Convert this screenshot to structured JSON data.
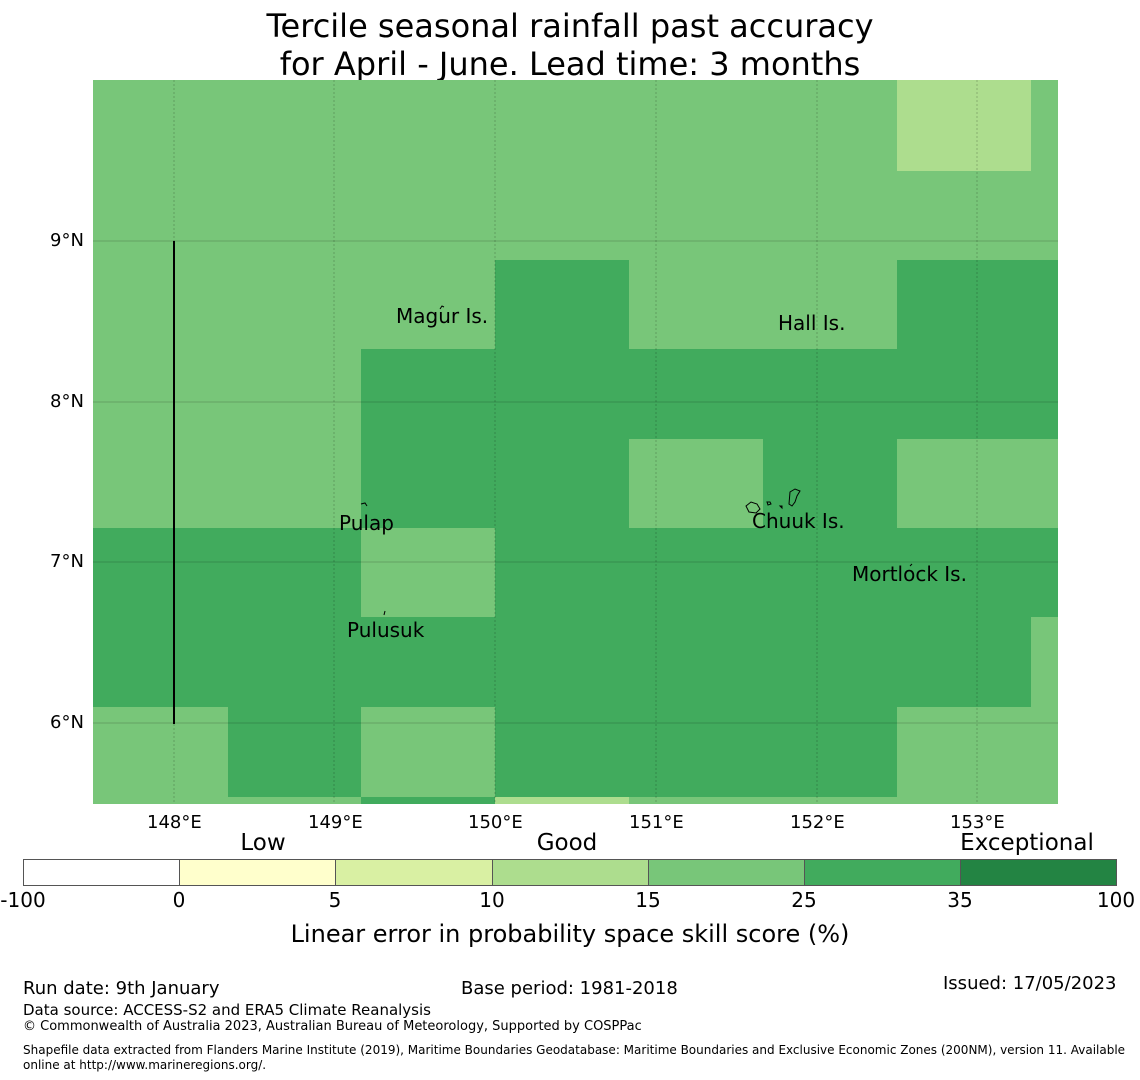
{
  "title": {
    "line1": "Tercile seasonal rainfall past accuracy",
    "line2": "for April - June. Lead time: 3 months"
  },
  "map": {
    "lon_labels": [
      "148°E",
      "149°E",
      "150°E",
      "151°E",
      "152°E",
      "153°E"
    ],
    "lat_labels": [
      "9°N",
      "8°N",
      "7°N",
      "6°N"
    ],
    "places": {
      "magur": "Magur Is.",
      "hall": "Hall Is.",
      "pulap": "Pulap",
      "chuuk": "Chuuk Is.",
      "mortlock": "Mortlock Is.",
      "pulusuk": "Pulusuk"
    }
  },
  "colorbar": {
    "categories": {
      "low": "Low",
      "good": "Good",
      "exceptional": "Exceptional"
    },
    "ticks": [
      "-100",
      "0",
      "5",
      "10",
      "15",
      "25",
      "35",
      "100"
    ],
    "colors": [
      "#ffffff",
      "#ffffcc",
      "#d9f0a3",
      "#addd8e",
      "#78c679",
      "#41ab5d",
      "#238443"
    ],
    "label": "Linear error in probability space skill score (%)"
  },
  "footer": {
    "run_date": "Run date: 9th January",
    "base_period": "Base period: 1981-2018",
    "issued": "Issued: 17/05/2023",
    "data_source": "Data source: ACCESS-S2 and ERA5 Climate Reanalysis",
    "copyright": "© Commonwealth of Australia 2023, Australian Bureau of Meteorology, Supported by COSPPac",
    "shapefile_line1": "Shapefile data extracted from Flanders Marine Institute (2019), Maritime Boundaries Geodatabase: Maritime Boundaries and Exclusive Economic Zones (200NM), version 11. Available",
    "shapefile_line2": "online at http://www.marineregions.org/."
  }
}
